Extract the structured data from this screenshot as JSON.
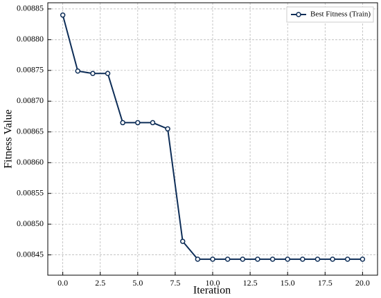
{
  "chart_data": {
    "type": "line",
    "x": [
      0,
      1,
      2,
      3,
      4,
      5,
      6,
      7,
      8,
      9,
      10,
      11,
      12,
      13,
      14,
      15,
      16,
      17,
      18,
      19,
      20
    ],
    "series": [
      {
        "name": "Best Fitness (Train)",
        "color": "#0d2d57",
        "values": [
          0.00884,
          0.008749,
          0.008745,
          0.008745,
          0.008665,
          0.008665,
          0.008665,
          0.008655,
          0.008472,
          0.008443,
          0.008443,
          0.008443,
          0.008443,
          0.008443,
          0.008443,
          0.008443,
          0.008443,
          0.008443,
          0.008443,
          0.008443,
          0.008443
        ]
      }
    ],
    "xlabel": "Iteration",
    "ylabel": "Fitness Value",
    "xlim": [
      -1,
      21
    ],
    "xticks": [
      {
        "value": 0,
        "label": "0.0"
      },
      {
        "value": 2.5,
        "label": "2.5"
      },
      {
        "value": 5,
        "label": "5.0"
      },
      {
        "value": 7.5,
        "label": "7.5"
      },
      {
        "value": 10,
        "label": "10.0"
      },
      {
        "value": 12.5,
        "label": "12.5"
      },
      {
        "value": 15,
        "label": "15.0"
      },
      {
        "value": 17.5,
        "label": "17.5"
      },
      {
        "value": 20,
        "label": "20.0"
      }
    ],
    "ylim": [
      0.008417,
      0.00886
    ],
    "yticks": [
      {
        "value": 0.00845,
        "label": "0.00845"
      },
      {
        "value": 0.0085,
        "label": "0.00850"
      },
      {
        "value": 0.00855,
        "label": "0.00855"
      },
      {
        "value": 0.0086,
        "label": "0.00860"
      },
      {
        "value": 0.00865,
        "label": "0.00865"
      },
      {
        "value": 0.0087,
        "label": "0.00870"
      },
      {
        "value": 0.00875,
        "label": "0.00875"
      },
      {
        "value": 0.0088,
        "label": "0.00880"
      },
      {
        "value": 0.00885,
        "label": "0.00885"
      }
    ],
    "grid": true,
    "legend": "upper right"
  }
}
